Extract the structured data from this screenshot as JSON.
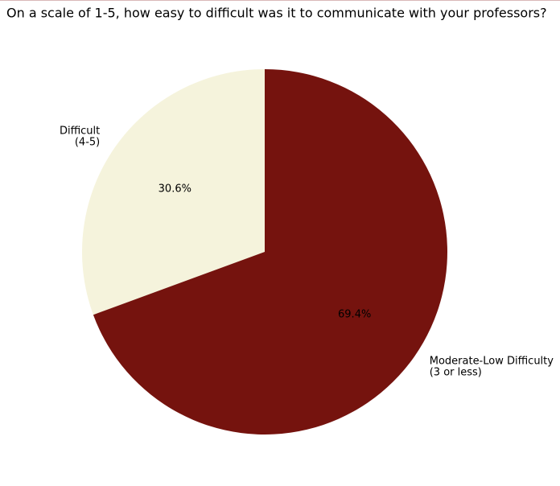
{
  "chart_data": {
    "type": "pie",
    "title": "On a scale of 1-5, how easy to difficult was it to communicate with your professors?",
    "categories": [
      [
        "Difficult",
        "(4-5)"
      ],
      [
        "Moderate-Low Difficulty",
        "(3 or less)"
      ]
    ],
    "values": [
      30.6,
      69.4
    ],
    "value_labels": [
      "30.6%",
      "69.4%"
    ],
    "colors": [
      "#f5f3dc",
      "#75130e"
    ]
  }
}
